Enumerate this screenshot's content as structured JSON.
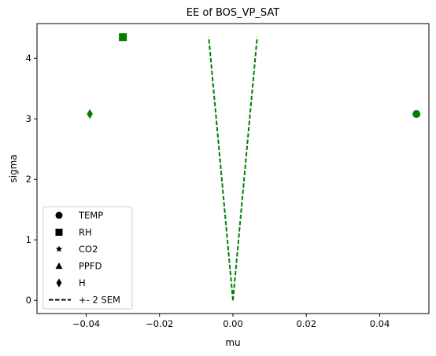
{
  "chart_data": {
    "type": "scatter",
    "title": "EE of BOS_VP_SAT",
    "xlabel": "mu",
    "ylabel": "sigma",
    "xlim": [
      -0.0534,
      0.0534
    ],
    "ylim": [
      -0.218,
      4.574
    ],
    "xticks": [
      -0.04,
      -0.02,
      0.0,
      0.02,
      0.04
    ],
    "xtick_labels": [
      "−0.04",
      "−0.02",
      "0.00",
      "0.02",
      "0.04"
    ],
    "yticks": [
      0,
      1,
      2,
      3,
      4
    ],
    "ytick_labels": [
      "0",
      "1",
      "2",
      "3",
      "4"
    ],
    "grid": false,
    "legend_position": "lower-left",
    "marker_color": "#007f00",
    "line_color": "#007f00",
    "points": [
      {
        "name": "TEMP",
        "marker": "circle",
        "x": 0.05,
        "y": 3.08
      },
      {
        "name": "RH",
        "marker": "square",
        "x": -0.03,
        "y": 4.35
      },
      {
        "name": "H",
        "marker": "diamond",
        "x": -0.039,
        "y": 3.08
      }
    ],
    "sem_lines": [
      {
        "x": [
          0.0,
          -0.0066
        ],
        "y": [
          0.0,
          4.35
        ]
      },
      {
        "x": [
          0.0,
          0.0066
        ],
        "y": [
          0.0,
          4.35
        ]
      }
    ],
    "legend": [
      {
        "label": "TEMP",
        "marker": "circle"
      },
      {
        "label": "RH",
        "marker": "square"
      },
      {
        "label": "CO2",
        "marker": "star"
      },
      {
        "label": "PPFD",
        "marker": "triangle"
      },
      {
        "label": "H",
        "marker": "diamond"
      },
      {
        "label": "+- 2 SEM",
        "marker": "dashed-line"
      }
    ]
  }
}
